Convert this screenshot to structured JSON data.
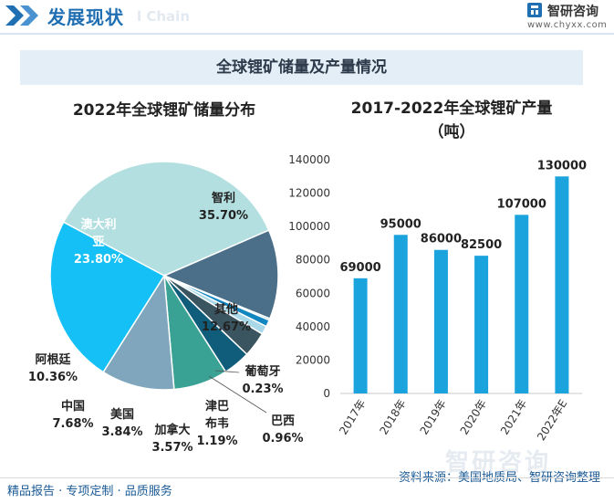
{
  "header": {
    "title": "发展现状",
    "watermark": "l Chain",
    "brand": "智研咨询",
    "url": "www.chyxx.com"
  },
  "banner": {
    "title": "全球锂矿储量及产量情况"
  },
  "colors": {
    "header_blue": "#1f6fb2",
    "banner_bg": "#e4eef7",
    "bar": "#1aa3dd"
  },
  "chart_data": [
    {
      "type": "pie",
      "title": "2022年全球锂矿储量分布",
      "unit": "%",
      "slices": [
        {
          "name": "智利",
          "label_lines": [
            "智利"
          ],
          "value": 35.7,
          "value_text": "35.70%",
          "color": "#b3dfe0"
        },
        {
          "name": "其他",
          "label_lines": [
            "其他"
          ],
          "value": 12.67,
          "value_text": "12.67%",
          "color": "#4b6f88"
        },
        {
          "name": "葡萄牙",
          "label_lines": [
            "葡萄牙"
          ],
          "value": 0.23,
          "value_text": "0.23%",
          "color": "#2a9ad8"
        },
        {
          "name": "巴西",
          "label_lines": [
            "巴西"
          ],
          "value": 0.96,
          "value_text": "0.96%",
          "color": "#0f86c0"
        },
        {
          "name": "津巴布韦",
          "label_lines": [
            "津巴",
            "布韦"
          ],
          "value": 1.19,
          "value_text": "1.19%",
          "color": "#a9d8e8"
        },
        {
          "name": "加拿大",
          "label_lines": [
            "加拿大"
          ],
          "value": 3.57,
          "value_text": "3.57%",
          "color": "#3b5560"
        },
        {
          "name": "美国",
          "label_lines": [
            "美国"
          ],
          "value": 3.84,
          "value_text": "3.84%",
          "color": "#0f5d7a"
        },
        {
          "name": "中国",
          "label_lines": [
            "中国"
          ],
          "value": 7.68,
          "value_text": "7.68%",
          "color": "#3aa195"
        },
        {
          "name": "阿根廷",
          "label_lines": [
            "阿根廷"
          ],
          "value": 10.36,
          "value_text": "10.36%",
          "color": "#7fa6bd"
        },
        {
          "name": "澳大利亚",
          "label_lines": [
            "澳大利",
            "亚"
          ],
          "value": 23.8,
          "value_text": "23.80%",
          "color": "#14c0f5"
        }
      ]
    },
    {
      "type": "bar",
      "title_lines": [
        "2017-2022年全球锂矿产量",
        "（吨）"
      ],
      "categories": [
        "2017年",
        "2018年",
        "2019年",
        "2020年",
        "2021年",
        "2022年E"
      ],
      "values": [
        69000,
        95000,
        86000,
        82500,
        107000,
        130000
      ],
      "value_labels": [
        "69000",
        "95000",
        "86000",
        "82500",
        "107000",
        "130000"
      ],
      "ylim": [
        0,
        140000
      ],
      "yticks": [
        0,
        20000,
        40000,
        60000,
        80000,
        100000,
        120000,
        140000
      ],
      "ytick_labels": [
        "0",
        "20000",
        "40000",
        "60000",
        "80000",
        "100000",
        "120000",
        "140000"
      ],
      "grid": false
    }
  ],
  "footer": {
    "left": "精品报告 · 专项定制 · 品质服务",
    "source": "资料来源：美国地质局、智研咨询整理",
    "watermark": "智研咨询"
  }
}
